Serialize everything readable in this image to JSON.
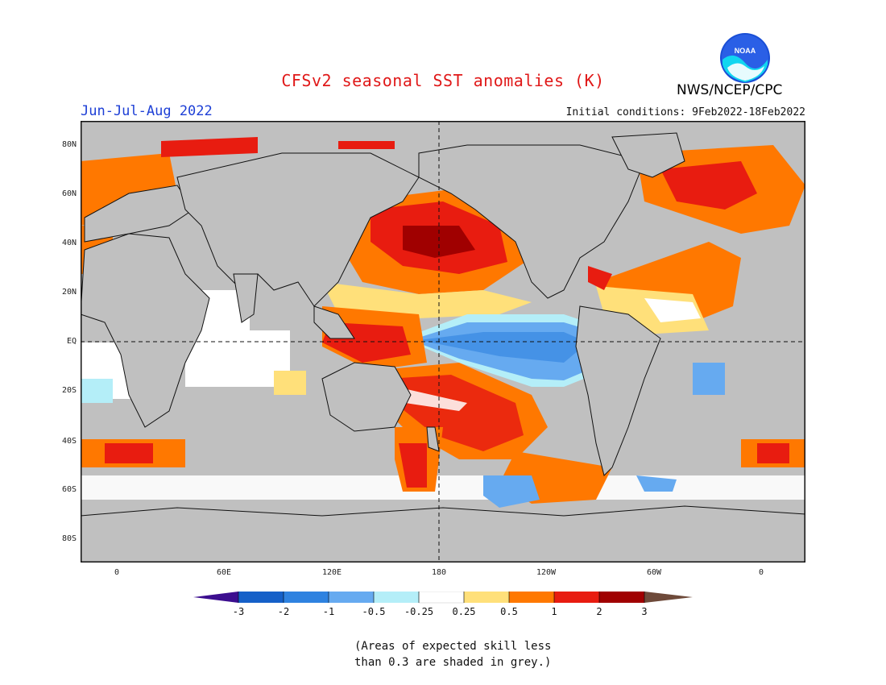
{
  "header": {
    "title": "CFSv2 seasonal SST anomalies (K)",
    "season": "Jun-Jul-Aug 2022",
    "initial_conditions": "Initial conditions: 9Feb2022-18Feb2022",
    "agency": "NWS/NCEP/CPC",
    "logo_text": "NOAA"
  },
  "map": {
    "lat_labels": [
      "80N",
      "60N",
      "40N",
      "20N",
      "EQ",
      "20S",
      "40S",
      "60S",
      "80S"
    ],
    "lon_labels": [
      "0",
      "60E",
      "120E",
      "180",
      "120W",
      "60W",
      "0"
    ],
    "land_color": "#c0c0c0",
    "grid_style": "dashed"
  },
  "colorbar": {
    "tick_labels": [
      "-3",
      "-2",
      "-1",
      "-0.5",
      "-0.25",
      "0.25",
      "0.5",
      "1",
      "2",
      "3"
    ],
    "colors": [
      "#3c0e8f",
      "#1560c8",
      "#2e82e0",
      "#66aaf0",
      "#b4eef8",
      "#ffffff",
      "#ffe07a",
      "#ff7800",
      "#e81c10",
      "#a00000",
      "#6e4a3a"
    ]
  },
  "note": {
    "line1": "(Areas of expected skill less",
    "line2": "than 0.3 are shaded in grey.)"
  }
}
